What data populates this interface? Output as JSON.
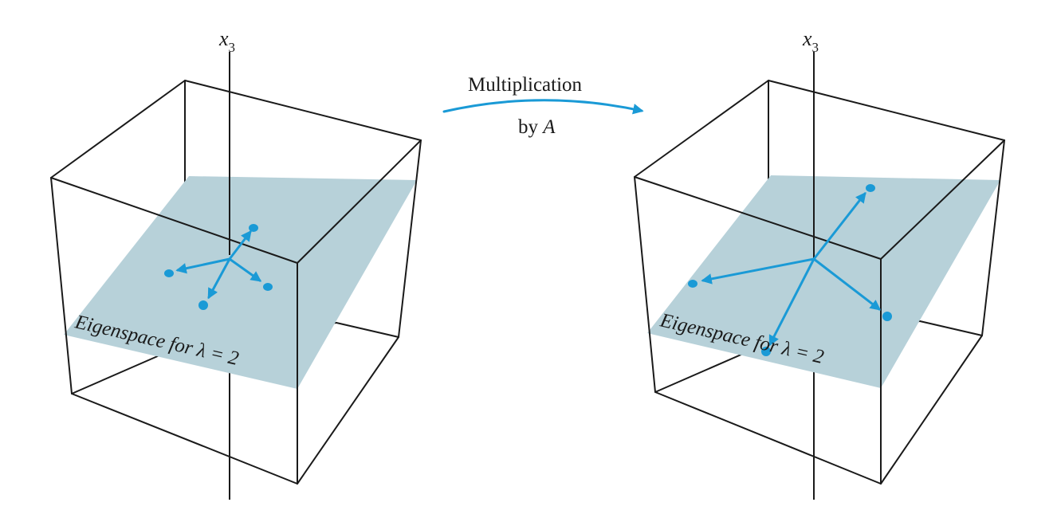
{
  "colors": {
    "vector": "#1a9ad6",
    "plane": "#b7d1d9",
    "edge": "#1a1a1a"
  },
  "left_panel": {
    "axis_label": "x",
    "axis_subscript": "3",
    "plane_label": "Eigenspace for λ = 2"
  },
  "right_panel": {
    "axis_label": "x",
    "axis_subscript": "3",
    "plane_label": "Eigenspace for λ = 2"
  },
  "transform": {
    "line1": "Multiplication",
    "line2_prefix": "by ",
    "line2_matrix": "A"
  }
}
